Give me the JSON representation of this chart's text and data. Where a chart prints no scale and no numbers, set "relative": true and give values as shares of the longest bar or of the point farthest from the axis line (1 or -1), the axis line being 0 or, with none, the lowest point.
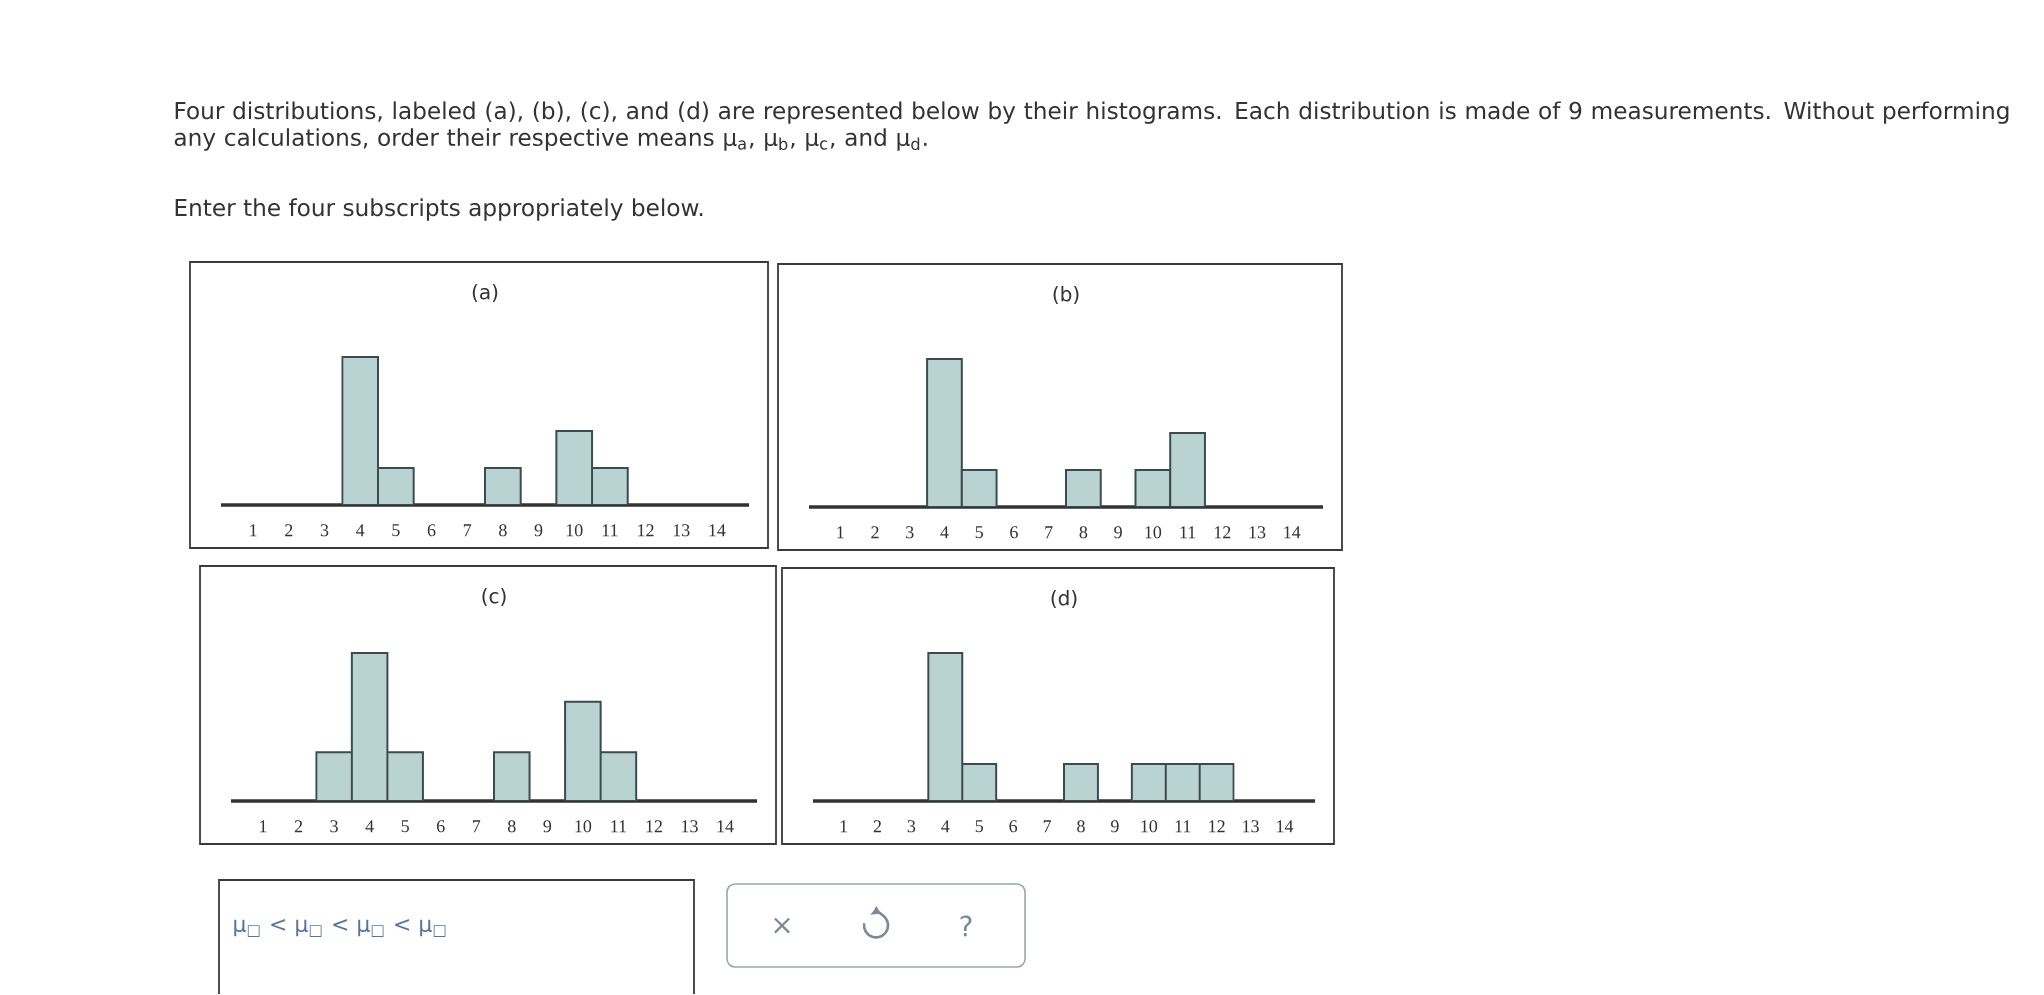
{
  "chart_data": [
    {
      "type": "other",
      "annotations": [
        "Four distributions, labeled (a), (b), (c), and (d) are represented below by their histograms. Each distribution is made of 9 measurements. Without performing any calculations, order their respective means μ$_{a}$, μ$_{b}$, μ$_{c}$, and μ$_{d}$.",
        "Enter the four subscripts appropriately below."
      ]
    },
    {
      "type": "bar",
      "title": "(a)",
      "categories": [
        "1",
        "2",
        "3",
        "4",
        "5",
        "6",
        "7",
        "8",
        "9",
        "10",
        "11",
        "12",
        "13",
        "14"
      ],
      "values": [
        0,
        0,
        0,
        1,
        0.25,
        0,
        0,
        0.25,
        0,
        0.5,
        0.25,
        0,
        0,
        0
      ],
      "relative": true,
      "color": "#b9d3d3"
    },
    {
      "type": "bar",
      "title": "(b)",
      "categories": [
        "1",
        "2",
        "3",
        "4",
        "5",
        "6",
        "7",
        "8",
        "9",
        "10",
        "11",
        "12",
        "13",
        "14"
      ],
      "values": [
        0,
        0,
        0,
        1,
        0.25,
        0,
        0,
        0.25,
        0,
        0.25,
        0.5,
        0,
        0,
        0
      ],
      "relative": true,
      "color": "#b9d3d3"
    },
    {
      "type": "bar",
      "title": "(c)",
      "categories": [
        "1",
        "2",
        "3",
        "4",
        "5",
        "6",
        "7",
        "8",
        "9",
        "10",
        "11",
        "12",
        "13",
        "14"
      ],
      "values": [
        0,
        0,
        0.33,
        1,
        0.33,
        0,
        0,
        0.33,
        0,
        0.67,
        0.33,
        0,
        0,
        0
      ],
      "relative": true,
      "color": "#b9d3d3"
    },
    {
      "type": "bar",
      "title": "(d)",
      "categories": [
        "1",
        "2",
        "3",
        "4",
        "5",
        "6",
        "7",
        "8",
        "9",
        "10",
        "11",
        "12",
        "13",
        "14"
      ],
      "values": [
        0,
        0,
        0,
        1,
        0.25,
        0,
        0,
        0.25,
        0,
        0.25,
        0.25,
        0.25,
        0,
        0
      ],
      "relative": true,
      "color": "#b9d3d3"
    },
    {
      "type": "other",
      "annotations": [
        "μ$_{□}$ < μ$_{□}$ < μ$_{□}$ < μ$_{□}$",
        "×",
        "?"
      ]
    }
  ]
}
